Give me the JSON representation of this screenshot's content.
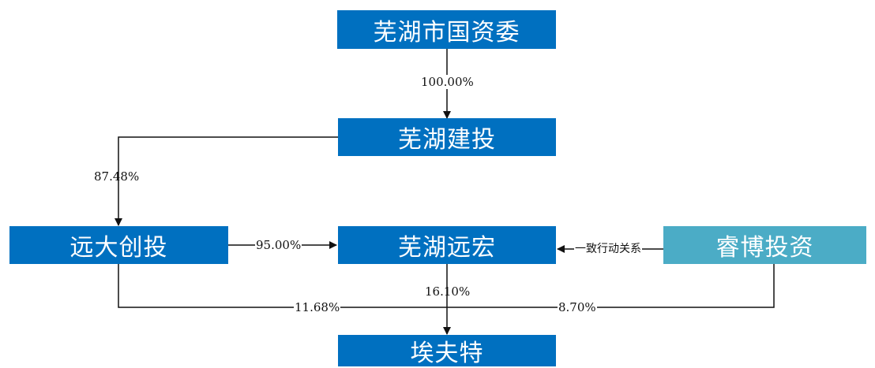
{
  "entities": {
    "sasac": "芜湖市国资委",
    "jiantou": "芜湖建投",
    "yuanda": "远大创投",
    "yuanhong": "芜湖远宏",
    "ruibo": "睿博投资",
    "aifute": "埃夫特"
  },
  "relations": {
    "sasac_to_jiantou": "100.00%",
    "jiantou_to_yuanda": "87.48%",
    "yuanda_to_yuanhong": "95.00%",
    "ruibo_to_yuanhong": "一致行动关系",
    "yuanhong_to_aifute": "16.10%",
    "yuanda_to_aifute": "11.68%",
    "ruibo_to_aifute": "8.70%"
  },
  "colors": {
    "box_blue": "#0070c0",
    "box_teal": "#4bacc6",
    "line": "#111111"
  }
}
